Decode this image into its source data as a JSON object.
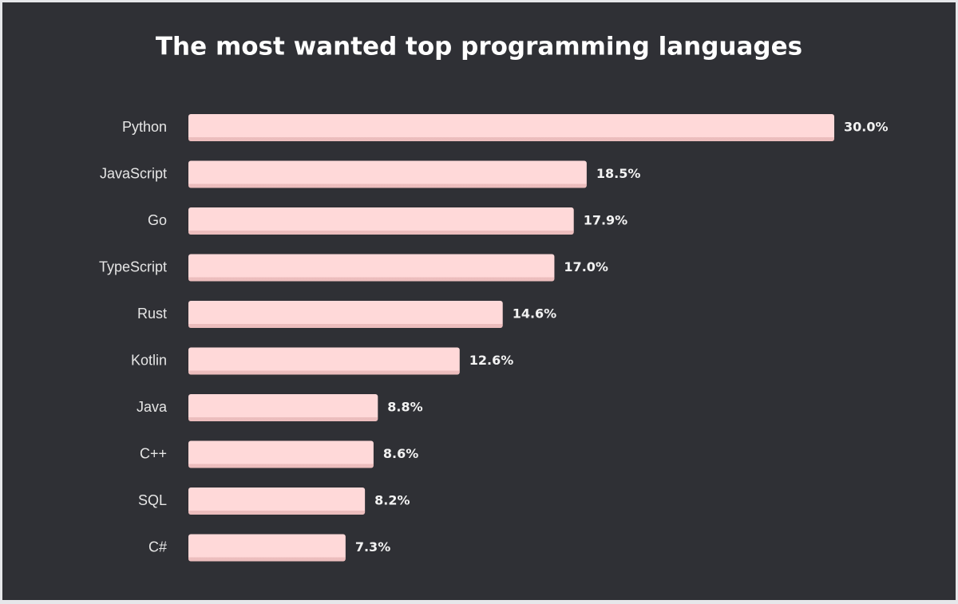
{
  "chart_data": {
    "type": "bar",
    "orientation": "horizontal",
    "title": "The most wanted top programming languages",
    "categories": [
      "Python",
      "JavaScript",
      "Go",
      "TypeScript",
      "Rust",
      "Kotlin",
      "Java",
      "C++",
      "SQL",
      "C#"
    ],
    "values": [
      30.0,
      18.5,
      17.9,
      17.0,
      14.6,
      12.6,
      8.8,
      8.6,
      8.2,
      7.3
    ],
    "value_labels": [
      "30.0%",
      "18.5%",
      "17.9%",
      "17.0%",
      "14.6%",
      "12.6%",
      "8.8%",
      "8.6%",
      "8.2%",
      "7.3%"
    ],
    "color": "#ffd9d9"
  }
}
